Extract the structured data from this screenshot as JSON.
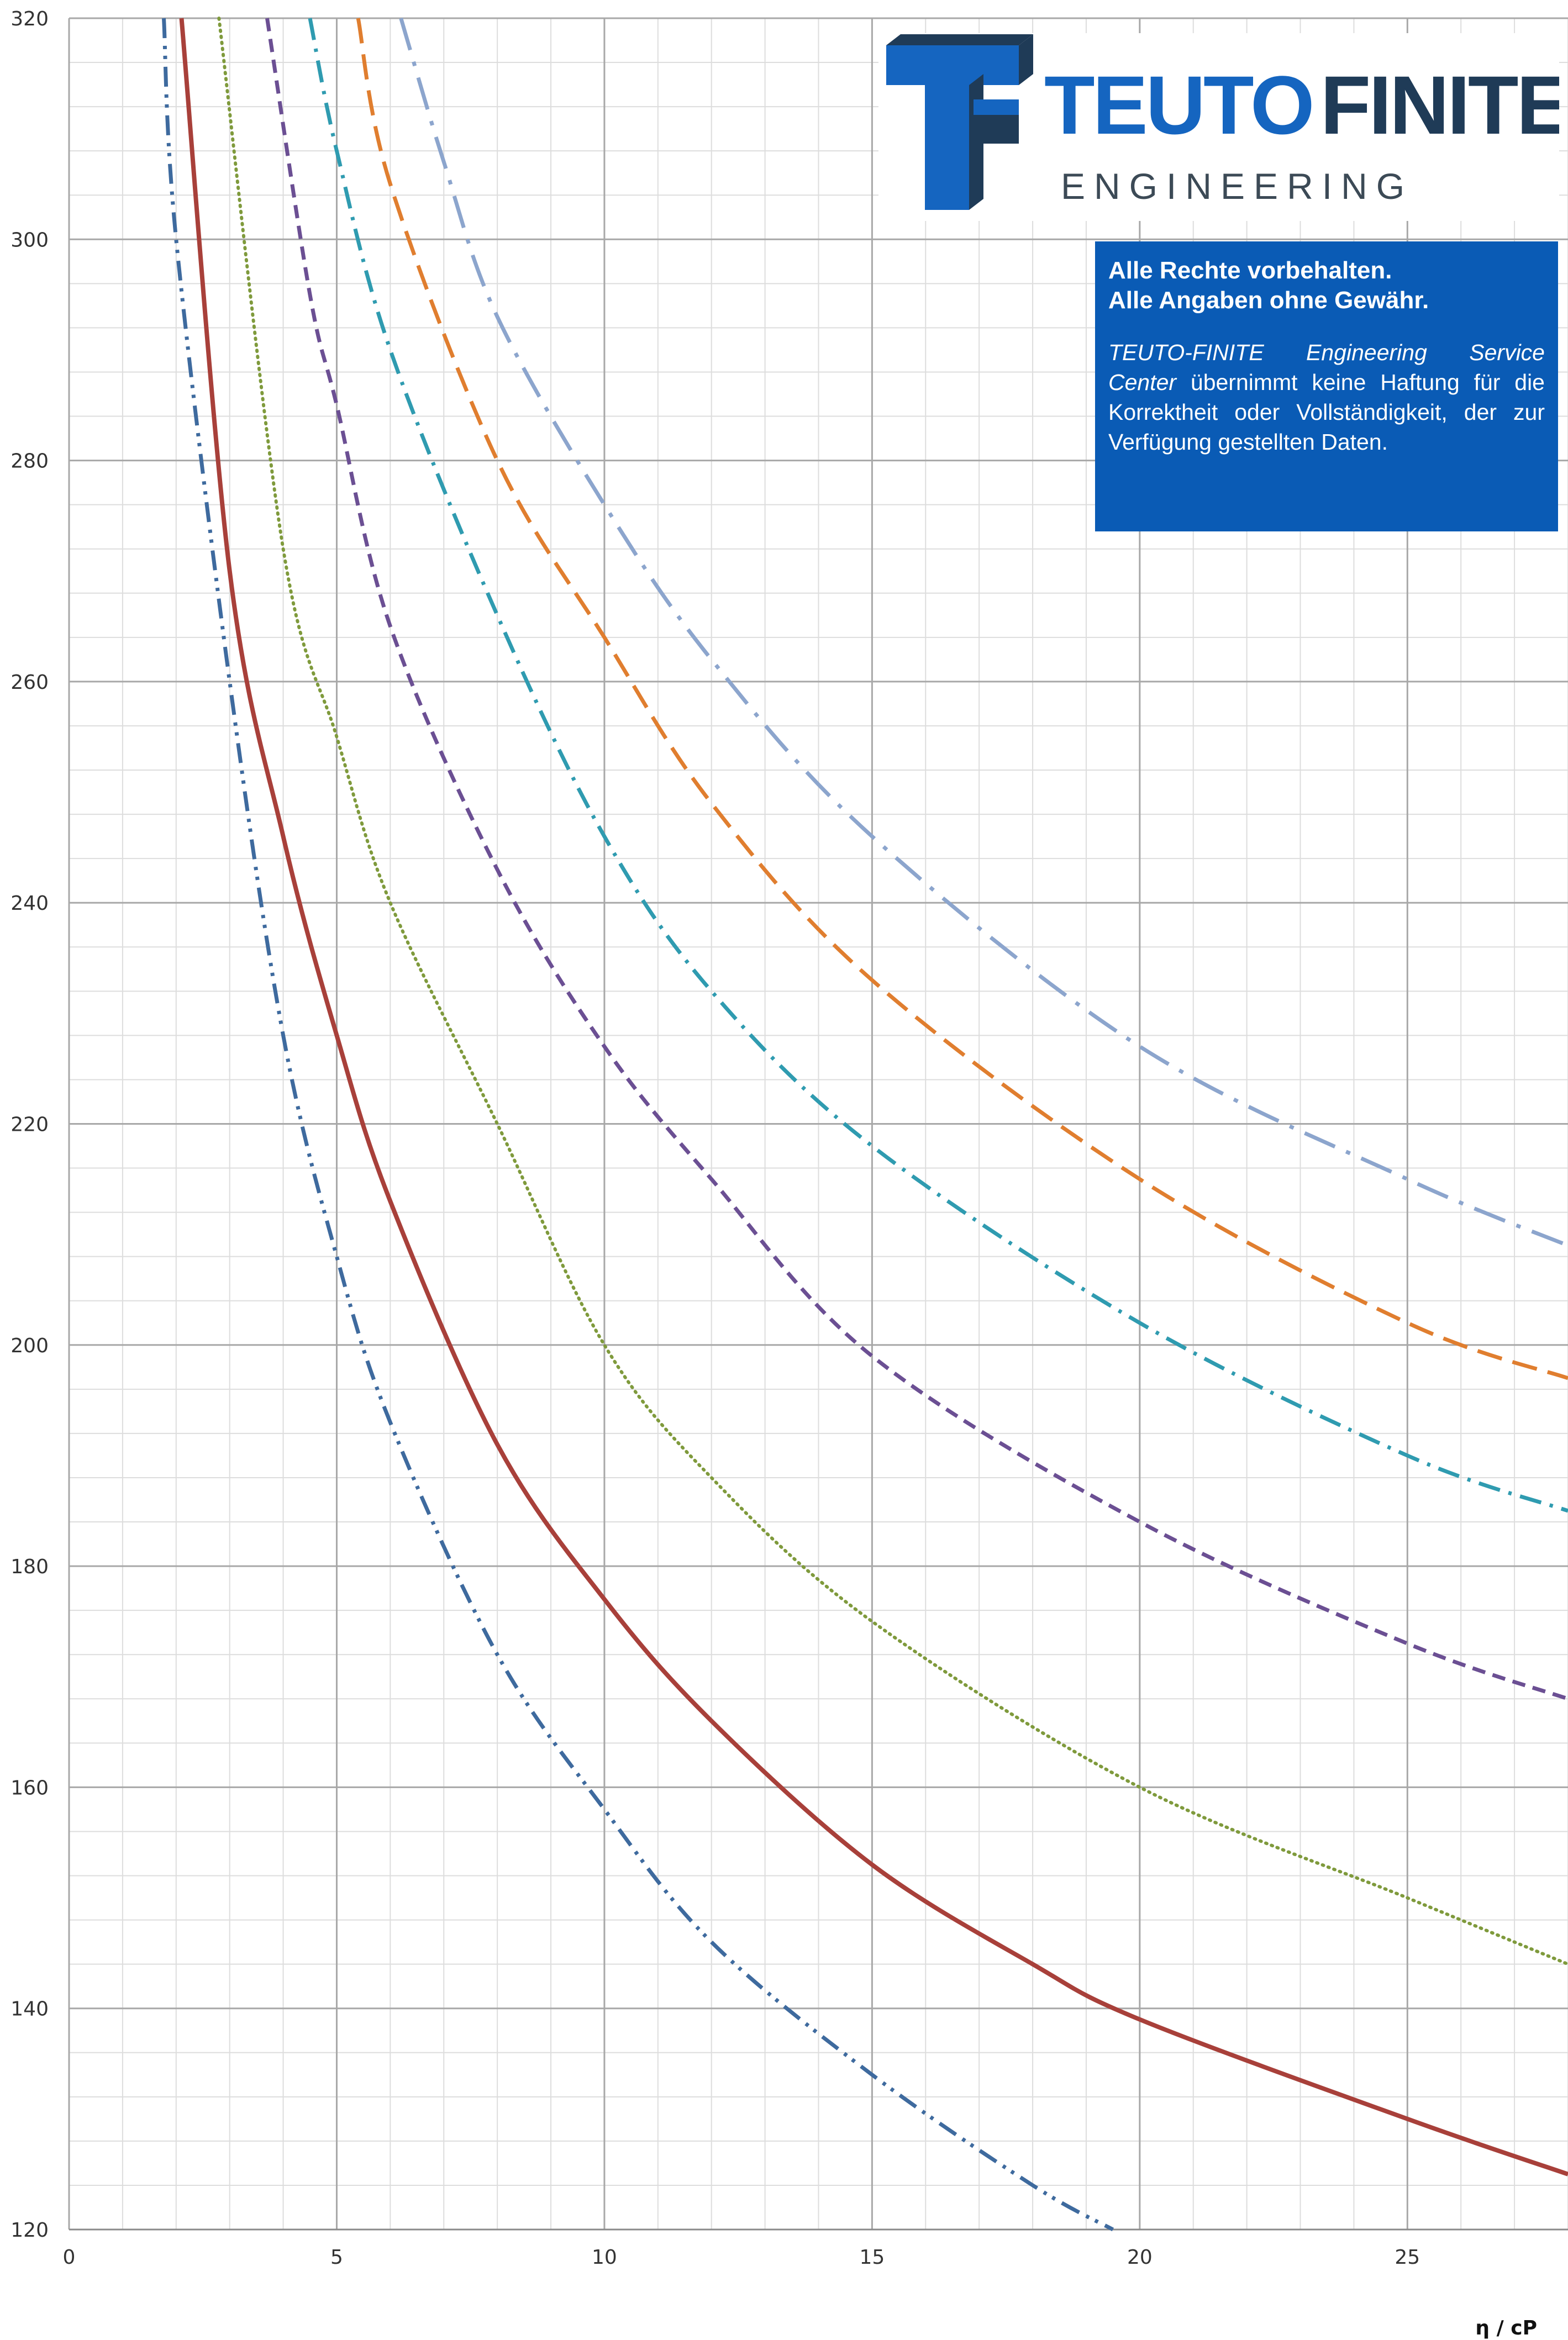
{
  "chart_data": {
    "type": "line",
    "xlabel": "η / cP",
    "ylabel": "",
    "xlim": [
      0,
      28
    ],
    "ylim": [
      120,
      320
    ],
    "x_ticks": [
      0,
      5,
      10,
      15,
      20,
      25
    ],
    "y_ticks": [
      120,
      140,
      160,
      180,
      200,
      220,
      240,
      260,
      280,
      300,
      320
    ],
    "grid": true,
    "series": [
      {
        "x": [
          1.77,
          2,
          3,
          4,
          5,
          6,
          8,
          10,
          12,
          15,
          18,
          19.5
        ],
        "y": [
          320,
          300,
          260,
          228,
          208,
          193,
          172,
          158,
          146,
          134,
          124,
          120
        ],
        "color": "#3e6a9e",
        "dash": "dash-dot-dot"
      },
      {
        "x": [
          2.1,
          3,
          4,
          5,
          6,
          8,
          10,
          12,
          15,
          18,
          20,
          25,
          28
        ],
        "y": [
          320,
          270,
          246,
          228,
          213,
          191,
          177,
          166,
          153,
          144,
          139,
          130,
          125
        ],
        "color": "#a8403a",
        "dash": "solid"
      },
      {
        "x": [
          2.8,
          4,
          5,
          6,
          8,
          10,
          12,
          15,
          20,
          25,
          28
        ],
        "y": [
          320,
          272,
          255,
          240,
          220,
          200,
          188,
          175,
          160,
          150,
          144
        ],
        "color": "#7f9a3c",
        "dash": "dotted"
      },
      {
        "x": [
          3.7,
          4.5,
          5,
          6,
          8,
          10,
          12,
          15,
          20,
          25,
          28
        ],
        "y": [
          320,
          295,
          285,
          265,
          243,
          227,
          215,
          199,
          184,
          173,
          168
        ],
        "color": "#6b4f93",
        "dash": "short-dash"
      },
      {
        "x": [
          4.5,
          5,
          6,
          8,
          10,
          12,
          15,
          20,
          25,
          28
        ],
        "y": [
          320,
          308,
          290,
          266,
          246,
          232,
          218,
          202,
          190,
          185
        ],
        "color": "#2f9bb0",
        "dash": "dash-dot"
      },
      {
        "x": [
          5.4,
          6,
          8,
          10,
          12,
          15,
          20,
          25,
          28
        ],
        "y": [
          320,
          305,
          280,
          264,
          249,
          233,
          215,
          202,
          197
        ],
        "color": "#e07e2f",
        "dash": "long-dash"
      },
      {
        "x": [
          6.2,
          7,
          8,
          10,
          12,
          15,
          20,
          25,
          28
        ],
        "y": [
          320,
          307,
          293,
          276,
          262,
          246,
          227,
          215,
          209
        ],
        "color": "#8ca5cd",
        "dash": "long-dash-dot"
      }
    ]
  },
  "logo": {
    "brand_name": "TEUTO FINITE",
    "brand_word_1": "TEUTO",
    "brand_word_2": "FINITE",
    "tagline": "ENGINEERING",
    "colors": {
      "blue": "#1565c0",
      "navy": "#1f3b57"
    }
  },
  "notice": {
    "line1": "Alle Rechte vorbehalten.",
    "line2": "Alle Angaben ohne Gewähr.",
    "company": "TEUTO-FINITE Engineering Service Center",
    "body": "übernimmt keine Haftung für die Korrektheit oder Vollständigkeit, der zur Verfügung gestellten Daten."
  }
}
